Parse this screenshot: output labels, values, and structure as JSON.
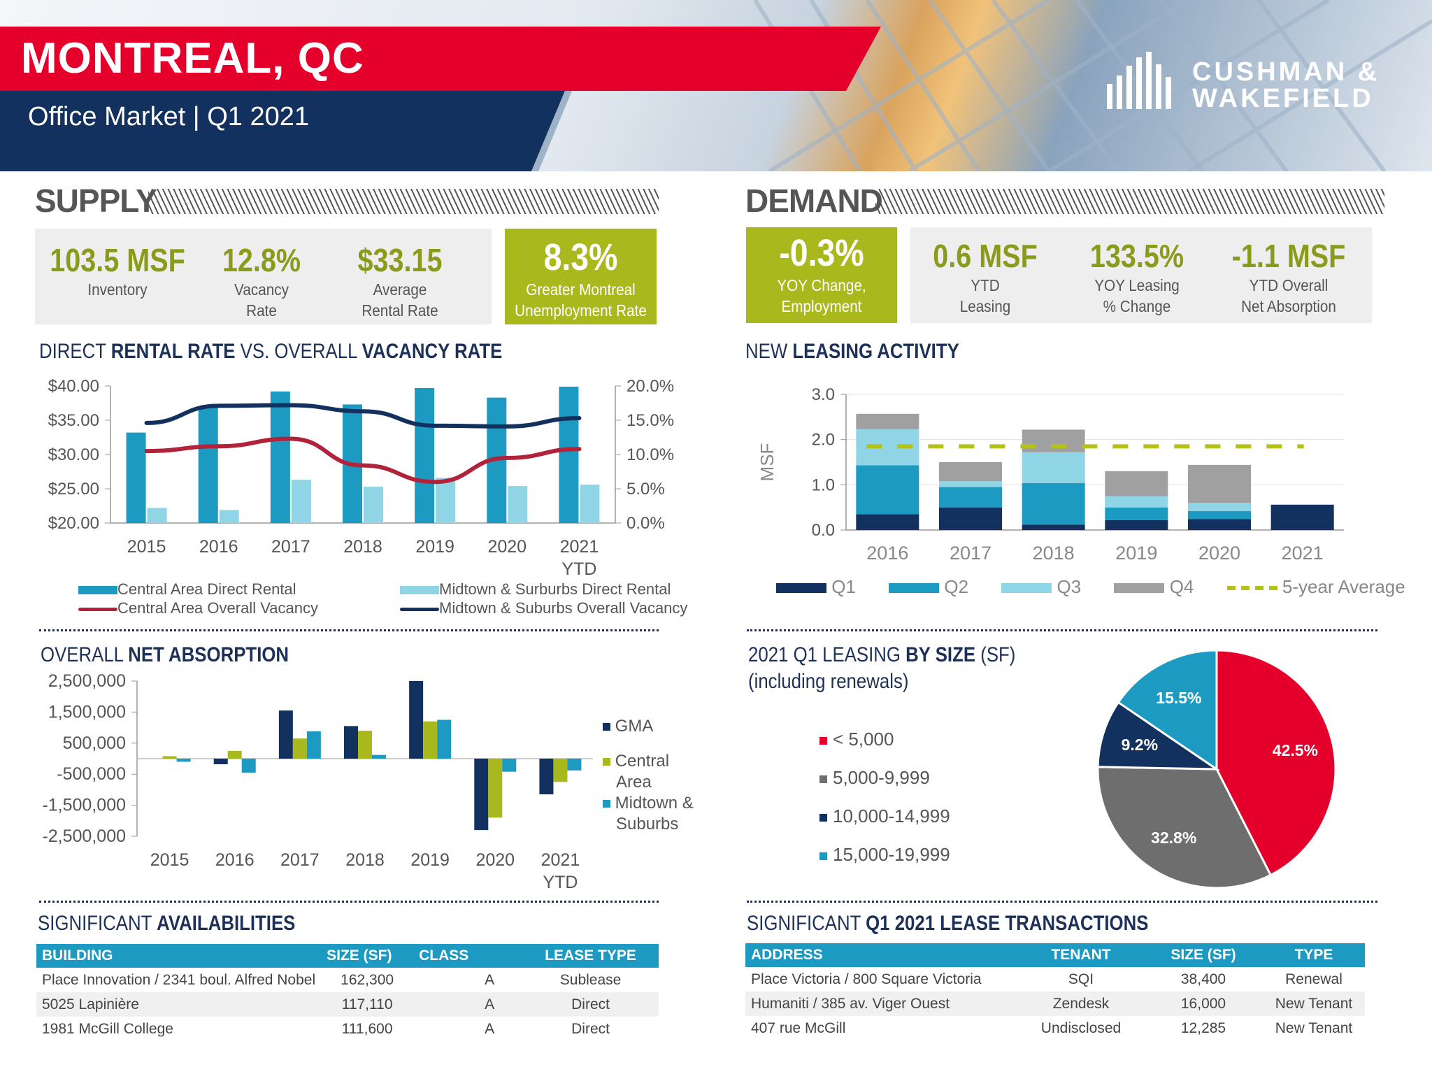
{
  "header": {
    "city": "MONTREAL, QC",
    "subtitle": "Office Market | Q1 2021",
    "brand_line1": "CUSHMAN &",
    "brand_line2": "WAKEFIELD"
  },
  "supply": {
    "title": "SUPPLY",
    "stats": [
      {
        "value": "103.5 MSF",
        "label1": "Inventory",
        "label2": ""
      },
      {
        "value": "12.8%",
        "label1": "Vacancy",
        "label2": "Rate"
      },
      {
        "value": "$33.15",
        "label1": "Average",
        "label2": "Rental Rate"
      }
    ],
    "highlight": {
      "value": "8.3%",
      "label1": "Greater Montreal",
      "label2": "Unemployment Rate"
    }
  },
  "demand": {
    "title": "DEMAND",
    "highlight": {
      "value": "-0.3%",
      "label1": "YOY Change,",
      "label2": "Employment"
    },
    "stats": [
      {
        "value": "0.6 MSF",
        "label1": "YTD",
        "label2": "Leasing"
      },
      {
        "value": "133.5%",
        "label1": "YOY Leasing",
        "label2": "% Change"
      },
      {
        "value": "-1.1 MSF",
        "label1": "YTD Overall",
        "label2": "Net Absorption"
      }
    ]
  },
  "charts": {
    "rental": {
      "t1": "DIRECT ",
      "t2": "RENTAL RATE",
      "t3": " VS. OVERALL ",
      "t4": "VACANCY RATE",
      "legend": [
        "Central Area Direct Rental",
        "Midtown & Surburbs Direct Rental",
        "Central Area Overall Vacancy",
        "Midtown & Suburbs Overall Vacancy"
      ]
    },
    "leasing": {
      "t1": "NEW ",
      "t2": "LEASING ACTIVITY",
      "ylabel": "MSF",
      "legend": [
        "Q1",
        "Q2",
        "Q3",
        "Q4",
        "5-year Average"
      ]
    },
    "absorption": {
      "t1": "OVERALL ",
      "t2": "NET ABSORPTION",
      "legend": [
        "GMA",
        "Central",
        "Area",
        "Midtown &",
        "Suburbs"
      ]
    },
    "pie": {
      "t1": "2021 Q1 LEASING ",
      "t2": "BY SIZE",
      "t3": " (SF)",
      "t4": "(including renewals)"
    }
  },
  "chart_data": [
    {
      "type": "bar",
      "title": "DIRECT RENTAL RATE VS. OVERALL VACANCY RATE",
      "categories": [
        "2015",
        "2016",
        "2017",
        "2018",
        "2019",
        "2020",
        "2021 YTD"
      ],
      "ylim": [
        20,
        40
      ],
      "y2lim": [
        0,
        20
      ],
      "y_ticks": [
        "$40.00",
        "$35.00",
        "$30.00",
        "$25.00",
        "$20.00"
      ],
      "y2_ticks": [
        "20.0%",
        "15.0%",
        "10.0%",
        "5.0%",
        "0.0%"
      ],
      "series": [
        {
          "name": "Central Area Direct Rental",
          "type": "bar",
          "color": "#1d9ac1",
          "values": [
            33.2,
            36.8,
            39.2,
            37.3,
            39.7,
            38.3,
            39.9
          ]
        },
        {
          "name": "Midtown & Surburbs Direct Rental",
          "type": "bar",
          "color": "#8fd5e6",
          "values": [
            22.2,
            21.9,
            26.3,
            25.3,
            26.6,
            25.4,
            25.6
          ]
        },
        {
          "name": "Central Area Overall Vacancy",
          "type": "line",
          "axis": "right",
          "color": "#b0233a",
          "values": [
            10.5,
            11.2,
            12.3,
            8.4,
            6.0,
            9.5,
            10.8
          ]
        },
        {
          "name": "Midtown & Suburbs Overall Vacancy",
          "type": "line",
          "axis": "right",
          "color": "#13315f",
          "values": [
            14.6,
            17.1,
            17.2,
            16.3,
            14.2,
            14.1,
            15.3
          ]
        }
      ]
    },
    {
      "type": "bar",
      "title": "NEW LEASING ACTIVITY",
      "ylabel": "MSF",
      "categories": [
        "2016",
        "2017",
        "2018",
        "2019",
        "2020",
        "2021"
      ],
      "ylim": [
        0,
        3
      ],
      "y_ticks": [
        "3.0",
        "2.0",
        "1.0",
        "0.0"
      ],
      "series": [
        {
          "name": "Q1",
          "color": "#13315f",
          "values": [
            0.35,
            0.5,
            0.12,
            0.22,
            0.24,
            0.56
          ]
        },
        {
          "name": "Q2",
          "color": "#1d9ac1",
          "values": [
            1.08,
            0.45,
            0.92,
            0.28,
            0.18,
            0
          ]
        },
        {
          "name": "Q3",
          "color": "#8fd5e6",
          "values": [
            0.8,
            0.13,
            0.68,
            0.25,
            0.18,
            0
          ]
        },
        {
          "name": "Q4",
          "color": "#a0a0a0",
          "values": [
            0.34,
            0.42,
            0.5,
            0.55,
            0.84,
            0
          ]
        }
      ],
      "average": {
        "name": "5-year Average",
        "value": 1.85,
        "color": "#b4c11b"
      }
    },
    {
      "type": "bar",
      "title": "OVERALL NET ABSORPTION",
      "categories": [
        "2015",
        "2016",
        "2017",
        "2018",
        "2019",
        "2020",
        "2021 YTD"
      ],
      "ylim": [
        -2500000,
        2500000
      ],
      "y_ticks": [
        "2,500,000",
        "1,500,000",
        "500,000",
        "-500,000",
        "-1,500,000",
        "-2,500,000"
      ],
      "series": [
        {
          "name": "GMA",
          "color": "#13315f",
          "values": [
            0,
            -180000,
            1550000,
            1050000,
            2500000,
            -2300000,
            -1150000
          ]
        },
        {
          "name": "Central Area",
          "color": "#a9b81c",
          "values": [
            80000,
            250000,
            650000,
            900000,
            1200000,
            -1900000,
            -750000
          ]
        },
        {
          "name": "Midtown & Suburbs",
          "color": "#1d9ac1",
          "values": [
            -100000,
            -450000,
            880000,
            120000,
            1250000,
            -420000,
            -380000
          ]
        }
      ]
    },
    {
      "type": "pie",
      "title": "2021 Q1 LEASING BY SIZE (SF)",
      "labels": [
        "< 5,000",
        "5,000-9,999",
        "10,000-14,999",
        "15,000-19,999"
      ],
      "values": [
        42.5,
        32.8,
        9.2,
        15.5
      ],
      "value_labels": [
        "42.5%",
        "32.8%",
        "9.2%",
        "15.5%"
      ],
      "colors": [
        "#e4002b",
        "#6e6e6e",
        "#13315f",
        "#1d9ac1"
      ]
    }
  ],
  "availabilities": {
    "t1": "SIGNIFICANT ",
    "t2": "AVAILABILITIES",
    "columns": [
      "BUILDING",
      "SIZE (SF)",
      "CLASS",
      "LEASE TYPE"
    ],
    "rows": [
      [
        "Place Innovation / 2341 boul. Alfred Nobel",
        "162,300",
        "A",
        "Sublease"
      ],
      [
        "5025 Lapinière",
        "117,110",
        "A",
        "Direct"
      ],
      [
        "1981 McGill College",
        "111,600",
        "A",
        "Direct"
      ]
    ]
  },
  "transactions": {
    "t1": "SIGNIFICANT ",
    "t2": "Q1 2021 LEASE TRANSACTIONS",
    "columns": [
      "ADDRESS",
      "TENANT",
      "SIZE (SF)",
      "TYPE"
    ],
    "rows": [
      [
        "Place Victoria / 800 Square Victoria",
        "SQI",
        "38,400",
        "Renewal"
      ],
      [
        "Humaniti / 385 av. Viger Ouest",
        "Zendesk",
        "16,000",
        "New Tenant"
      ],
      [
        "407 rue McGill",
        "Undisclosed",
        "12,285",
        "New Tenant"
      ]
    ]
  }
}
